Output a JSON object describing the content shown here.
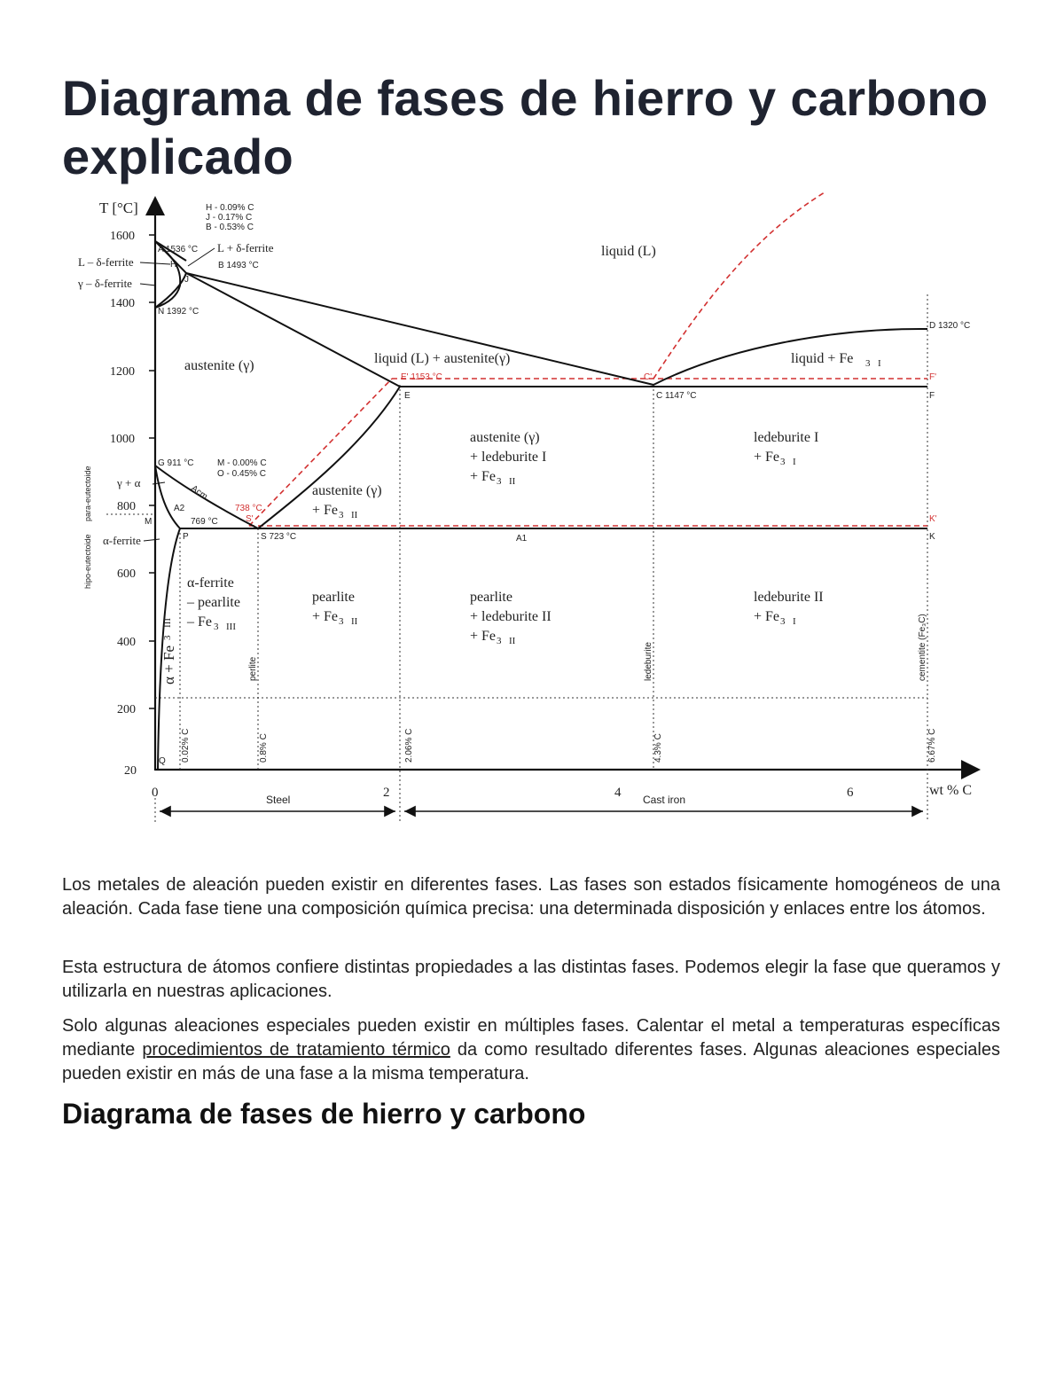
{
  "title": "Diagrama de fases de hierro y carbono explicado",
  "diagram": {
    "y_axis_label": "T [°C]",
    "x_axis_label": "wt % C",
    "y_ticks": [
      "1600",
      "1400",
      "1200",
      "1000",
      "800",
      "600",
      "400",
      "200",
      "20"
    ],
    "x_ticks": [
      "0",
      "2",
      "4",
      "6"
    ],
    "side_label_upper": "para-eutectoide",
    "side_label_lower": "hipo-eutectoide",
    "key_points": {
      "h": "H - 0.09% C",
      "j": "J - 0.17% C",
      "b": "B - 0.53% C",
      "m": "M - 0.00% C",
      "o": "O - 0.45% C"
    },
    "points": {
      "a": "A 1536 °C",
      "bt": "B 1493 °C",
      "n": "N 1392 °C",
      "e": "E' 1153 °C",
      "c1": "C'",
      "c2": "C 1147 °C",
      "d": "D 1320 °C",
      "g": "G 911 °C",
      "s1": "738 °C",
      "s2": "S'",
      "s3": "S 723 °C",
      "c769": "769 °C",
      "p": "P",
      "q": "Q",
      "e2": "E",
      "f": "F",
      "k": "K",
      "k2": "K'",
      "f2": "F'",
      "mm": "M",
      "hh": "H",
      "jj": "J",
      "a2": "A2",
      "acm": "Acm",
      "a1": "A1"
    },
    "phases": {
      "liquid": "liquid (L)",
      "l_delta": "L + δ-ferrite",
      "l_delta_left": "L – δ-ferrite",
      "g_delta": "γ – δ-ferrite",
      "austenite": "austenite (γ)",
      "liq_aus": "liquid (L) + austenite(γ)",
      "liq_fe3c": "liquid + Fe",
      "aus_led_1": "austenite (γ)",
      "aus_led_2": "+ ledeburite I",
      "aus_led_3": "+ Fe",
      "led1_1": "ledeburite I",
      "led1_2": "+ Fe",
      "aus_fe3c_1": "austenite (γ)",
      "aus_fe3c_2": "+ Fe",
      "g_alpha": "γ + α",
      "a_ferrite": "α-ferrite",
      "af_pearl_1": "α-ferrite",
      "af_pearl_2": "– pearlite",
      "af_pearl_3": "– Fe",
      "pearl_1": "pearlite",
      "pearl_2": "+ Fe",
      "pl_led_1": "pearlite",
      "pl_led_2": "+ ledeburite II",
      "pl_led_3": "+ Fe",
      "led2_1": "ledeburite II",
      "led2_2": "+ Fe",
      "alpha_fe3c": "α + Fe"
    },
    "vertical_labels": {
      "c002": "0.02% C",
      "c08": "0.8% C",
      "c206": "2.06% C",
      "c43": "4.3% C",
      "c667": "6.67% C",
      "perlite": "perlite",
      "ledeburite": "ledeburite",
      "cementite": "cementite (Fe₃C)"
    },
    "ranges": {
      "steel": "Steel",
      "cast_iron": "Cast iron"
    }
  },
  "paragraphs": {
    "p1": "Los metales de aleación pueden existir en diferentes fases. Las fases son estados físicamente homogéneos de una aleación. Cada fase tiene una composición química precisa: una determinada disposición y enlaces entre los átomos.",
    "p2": "Esta estructura de átomos confiere distintas propiedades a las distintas fases. Podemos elegir la fase que queramos y utilizarla en nuestras aplicaciones.",
    "p3_before": "Solo algunas aleaciones especiales pueden existir en múltiples fases. Calentar el metal a temperaturas específicas mediante ",
    "p3_link": "procedimientos de tratamiento térmico",
    "p3_after": " da como resultado diferentes fases. Algunas aleaciones especiales pueden existir en más de una fase a la misma temperatura."
  },
  "subtitle": "Diagrama de fases de hierro y carbono"
}
